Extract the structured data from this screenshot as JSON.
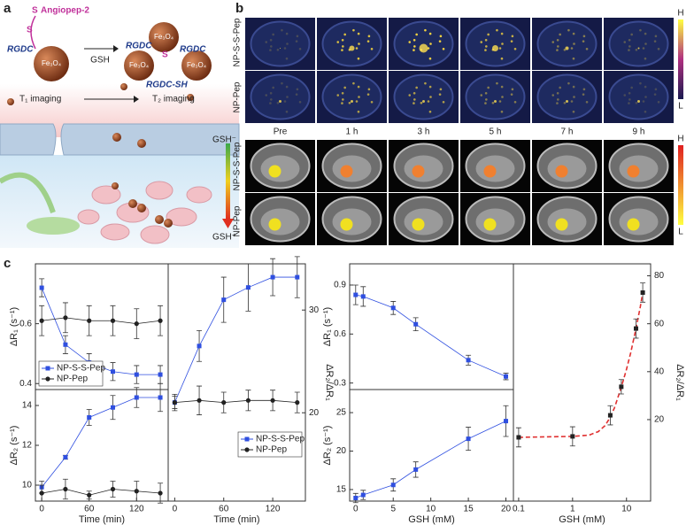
{
  "panel_labels": [
    "a",
    "b",
    "c"
  ],
  "panel_a": {
    "left_texts": [
      "S",
      "S",
      "Angiopep-2",
      "RGDC",
      "Fe₃O₄"
    ],
    "arrow_label": "GSH",
    "right_texts": [
      "Fe₃O₄",
      "Fe₃O₄",
      "Fe₃O₄",
      "RGDC",
      "RGDC",
      "RGDC-SH",
      "S"
    ],
    "imaging": [
      "T₁ imaging",
      "T₂ imaging"
    ],
    "gsh_gradient": [
      "GSH⁻",
      "GSH⁺"
    ]
  },
  "panel_b": {
    "rows_top": [
      "NP-S-S-Pep",
      "NP-Pep"
    ],
    "rows_bottom": [
      "NP-S-S-Pep",
      "NP-Pep"
    ],
    "columns": [
      "Pre",
      "1 h",
      "3 h",
      "5 h",
      "7 h",
      "9 h"
    ],
    "scale_top": [
      "H",
      "L"
    ],
    "scale_bottom": [
      "H",
      "L"
    ]
  },
  "chart_data": [
    {
      "type": "line",
      "ylabel": "ΔR₁ (s⁻¹)",
      "xlim": [
        -8,
        160
      ],
      "x": [
        0,
        30,
        60,
        90,
        120,
        150
      ],
      "ylim": [
        0.38,
        0.8
      ],
      "yticks": [
        0.4,
        0.6
      ],
      "legend": "lower left",
      "series": [
        {
          "name": "NP-S-S-Pep",
          "color": "#2f4fe0",
          "marker": "square",
          "values": [
            0.72,
            0.53,
            0.47,
            0.44,
            0.43,
            0.43
          ],
          "errors": [
            0.03,
            0.03,
            0.03,
            0.03,
            0.03,
            0.03
          ]
        },
        {
          "name": "NP-Pep",
          "color": "#222222",
          "marker": "circle",
          "values": [
            0.61,
            0.62,
            0.61,
            0.61,
            0.6,
            0.61
          ],
          "errors": [
            0.05,
            0.05,
            0.05,
            0.05,
            0.05,
            0.05
          ]
        }
      ]
    },
    {
      "type": "line",
      "ylabel": "ΔR₂ (s⁻¹)",
      "xlabel": "Time (min)",
      "xlim": [
        -8,
        160
      ],
      "x": [
        0,
        30,
        60,
        90,
        120,
        150
      ],
      "xticks": [
        0,
        60,
        120
      ],
      "ylim": [
        9.2,
        14.8
      ],
      "yticks": [
        10,
        12,
        14
      ],
      "series": [
        {
          "color": "#2f4fe0",
          "marker": "square",
          "values": [
            9.9,
            11.4,
            13.4,
            13.9,
            14.4,
            14.4
          ],
          "errors": [
            0.3,
            0.1,
            0.4,
            0.6,
            0.5,
            0.7
          ]
        },
        {
          "color": "#222222",
          "marker": "circle",
          "values": [
            9.6,
            9.8,
            9.5,
            9.8,
            9.7,
            9.6
          ],
          "errors": [
            0.4,
            0.5,
            0.2,
            0.4,
            0.5,
            0.5
          ]
        }
      ]
    },
    {
      "type": "line",
      "ylabel": "ΔR₂/ΔR₁",
      "xlabel": "Time (min)",
      "xlim": [
        -8,
        160
      ],
      "x": [
        0,
        30,
        60,
        90,
        120,
        150
      ],
      "xticks": [
        0,
        60,
        120
      ],
      "y2lim": [
        11.4,
        34.5
      ],
      "y2ticks": [
        20,
        30
      ],
      "legend": "lower right",
      "series": [
        {
          "name": "NP-S-S-Pep",
          "color": "#2f4fe0",
          "marker": "square",
          "axis": "y2",
          "values": [
            21.0,
            26.5,
            31.0,
            32.2,
            33.2,
            33.2
          ],
          "errors": [
            0.6,
            1.5,
            2.2,
            2.3,
            1.8,
            2.0
          ]
        },
        {
          "name": "NP-Pep",
          "color": "#222222",
          "marker": "circle",
          "axis": "y2",
          "values": [
            21.0,
            21.2,
            21.0,
            21.2,
            21.2,
            21.0
          ],
          "errors": [
            0.8,
            1.4,
            1.0,
            1.0,
            1.0,
            1.0
          ]
        }
      ]
    },
    {
      "type": "line",
      "ylabel": "ΔR₁ (s⁻¹)",
      "xlim": [
        -0.8,
        21
      ],
      "x": [
        0,
        1,
        5,
        8,
        15,
        20
      ],
      "ylim": [
        0.26,
        1.03
      ],
      "yticks": [
        0.3,
        0.6,
        0.9
      ],
      "series": [
        {
          "color": "#2f4fe0",
          "marker": "square",
          "values": [
            0.84,
            0.83,
            0.76,
            0.66,
            0.44,
            0.34
          ],
          "errors": [
            0.06,
            0.06,
            0.04,
            0.04,
            0.03,
            0.02
          ]
        }
      ]
    },
    {
      "type": "line",
      "ylabel": "ΔR₂ (s⁻¹)",
      "xlabel": "GSH (mM)",
      "xlim": [
        -0.8,
        21
      ],
      "x": [
        0,
        1,
        5,
        8,
        15,
        20
      ],
      "xticks": [
        0,
        5,
        10,
        15,
        20
      ],
      "ylim": [
        13.5,
        28
      ],
      "yticks": [
        15,
        20,
        25
      ],
      "series": [
        {
          "color": "#2f4fe0",
          "marker": "square",
          "values": [
            13.9,
            14.3,
            15.6,
            17.6,
            21.6,
            23.9
          ],
          "errors": [
            0.6,
            0.6,
            0.8,
            1.0,
            1.5,
            2.0
          ]
        }
      ]
    },
    {
      "type": "line",
      "ylabel": "ΔR₂/ΔR₁",
      "xlabel": "GSH (mM)",
      "xscale": "log",
      "xlim": [
        0.08,
        28
      ],
      "x": [
        0.1,
        1,
        5,
        8,
        15,
        20
      ],
      "xticks": [
        0.1,
        1,
        10
      ],
      "y2lim": [
        -14,
        85
      ],
      "y2ticks": [
        20,
        40,
        60,
        80
      ],
      "series": [
        {
          "color": "#222222",
          "marker": "square",
          "axis": "y2",
          "values": [
            12.6,
            13.0,
            21.8,
            33.7,
            58,
            73
          ],
          "errors": [
            4,
            4,
            4,
            3,
            4,
            4
          ]
        }
      ],
      "fit": {
        "color": "#e03030",
        "x": [
          0.1,
          1,
          2,
          3,
          4,
          5,
          6,
          8,
          10,
          12,
          15,
          18,
          20
        ],
        "values": [
          12.6,
          13,
          13.5,
          15,
          17.5,
          21,
          25,
          33.5,
          41,
          48,
          58,
          67,
          73
        ]
      }
    }
  ]
}
